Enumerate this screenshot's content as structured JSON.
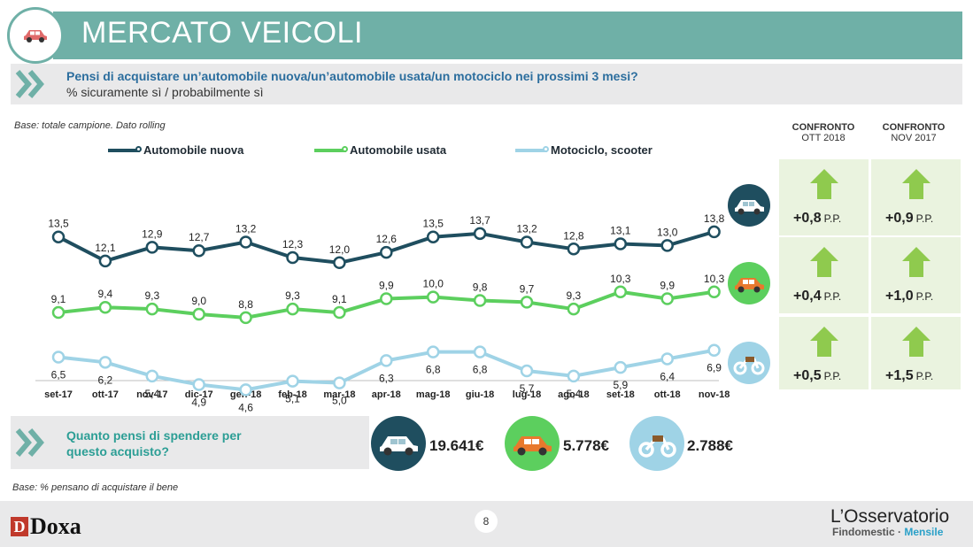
{
  "header": {
    "title": "MERCATO VEICOLI"
  },
  "question": {
    "text": "Pensi di acquistare un’automobile nuova/un’automobile usata/un motociclo nei prossimi 3 mesi?",
    "subtext": "% sicuramente sì / probabilmente sì"
  },
  "base_top": "Base: totale campione. Dato rolling",
  "base_bottom": "Base: % pensano di acquistare il bene",
  "colors": {
    "nuova": "#1f4e5f",
    "usata": "#5ccf5e",
    "moto": "#9fd3e6",
    "accent": "#6fb0a7"
  },
  "chart_data": {
    "type": "line",
    "categories": [
      "set-17",
      "ott-17",
      "nov-17",
      "dic-17",
      "gen-18",
      "feb-18",
      "mar-18",
      "apr-18",
      "mag-18",
      "giu-18",
      "lug-18",
      "ago-18",
      "set-18",
      "ott-18",
      "nov-18"
    ],
    "series": [
      {
        "name": "Automobile nuova",
        "values": [
          13.5,
          12.1,
          12.9,
          12.7,
          13.2,
          12.3,
          12.0,
          12.6,
          13.5,
          13.7,
          13.2,
          12.8,
          13.1,
          13.0,
          13.8
        ],
        "labels": [
          "13,5",
          "12,1",
          "12,9",
          "12,7",
          "13,2",
          "12,3",
          "12,0",
          "12,6",
          "13,5",
          "13,7",
          "13,2",
          "12,8",
          "13,1",
          "13,0",
          "13,8"
        ]
      },
      {
        "name": "Automobile usata",
        "values": [
          9.1,
          9.4,
          9.3,
          9.0,
          8.8,
          9.3,
          9.1,
          9.9,
          10.0,
          9.8,
          9.7,
          9.3,
          10.3,
          9.9,
          10.3
        ],
        "labels": [
          "9,1",
          "9,4",
          "9,3",
          "9,0",
          "8,8",
          "9,3",
          "9,1",
          "9,9",
          "10,0",
          "9,8",
          "9,7",
          "9,3",
          "10,3",
          "9,9",
          "10,3"
        ]
      },
      {
        "name": "Motociclo, scooter",
        "values": [
          6.5,
          6.2,
          5.4,
          4.9,
          4.6,
          5.1,
          5.0,
          6.3,
          6.8,
          6.8,
          5.7,
          5.4,
          5.9,
          6.4,
          6.9
        ],
        "labels": [
          "6,5",
          "6,2",
          "5,4",
          "4,9",
          "4,6",
          "5,1",
          "5,0",
          "6,3",
          "6,8",
          "6,8",
          "5,7",
          "5,4",
          "5,9",
          "6,4",
          "6,9"
        ]
      }
    ],
    "legend_position": "top",
    "grid": false
  },
  "comparison": {
    "headers": [
      {
        "title": "CONFRONTO",
        "period": "OTT 2018"
      },
      {
        "title": "CONFRONTO",
        "period": "NOV 2017"
      }
    ],
    "rows": [
      {
        "vehicle": "car-new",
        "values": [
          "+0,8",
          "+0,9"
        ]
      },
      {
        "vehicle": "car-used",
        "values": [
          "+0,4",
          "+1,0"
        ]
      },
      {
        "vehicle": "motorbike",
        "values": [
          "+0,5",
          "+1,5"
        ]
      }
    ],
    "unit": "P.P."
  },
  "spend": {
    "question": "Quanto pensi di spendere per questo acquisto?",
    "values": [
      "19.641€",
      "5.778€",
      "2.788€"
    ]
  },
  "footer": {
    "page": "8",
    "doxa_mark": "D",
    "doxa": "Doxa",
    "brand_line1": "L’Osservatorio",
    "brand_findo": "Findomestic",
    "brand_sep": " · ",
    "brand_mensile": "Mensile"
  }
}
